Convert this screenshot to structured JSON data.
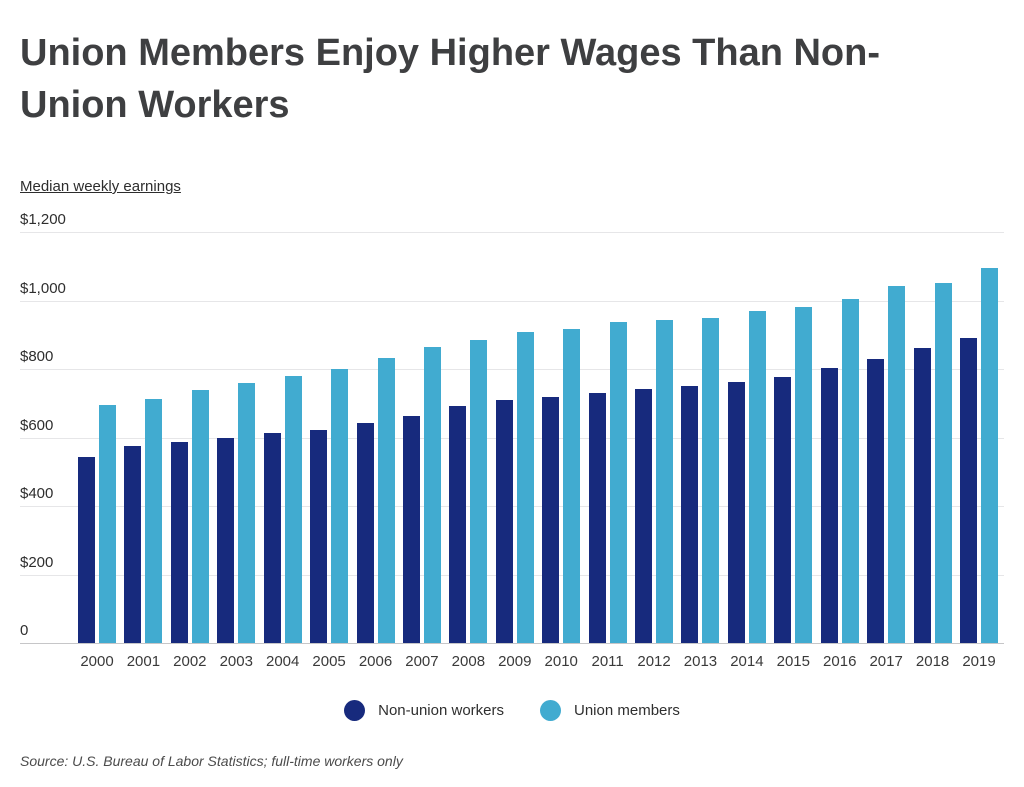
{
  "title": {
    "line1": "Union Members Enjoy Higher Wages Than Non-",
    "line2": "Union Workers"
  },
  "subtitle": "Median weekly earnings",
  "source": "Source: U.S. Bureau of Labor Statistics; full-time workers only",
  "colors": {
    "nonunion": "#172a7d",
    "union": "#41abd0",
    "gridline": "#e6e6e8",
    "baseline": "#c6c6c8",
    "title_text": "#3e3f41"
  },
  "chart_data": {
    "type": "bar",
    "title": "Union Members Enjoy Higher Wages Than Non-Union Workers",
    "subtitle": "Median weekly earnings",
    "xlabel": "",
    "ylabel": "Median weekly earnings ($)",
    "ylim": [
      0,
      1200
    ],
    "grid": true,
    "legend_position": "bottom",
    "categories": [
      "2000",
      "2001",
      "2002",
      "2003",
      "2004",
      "2005",
      "2006",
      "2007",
      "2008",
      "2009",
      "2010",
      "2011",
      "2012",
      "2013",
      "2014",
      "2015",
      "2016",
      "2017",
      "2018",
      "2019"
    ],
    "series": [
      {
        "name": "Non-union workers",
        "color": "#172a7d",
        "values": [
          542,
          575,
          587,
          599,
          612,
          622,
          642,
          663,
          691,
          710,
          717,
          729,
          742,
          750,
          763,
          776,
          802,
          829,
          860,
          892
        ]
      },
      {
        "name": "Union members",
        "color": "#41abd0",
        "values": [
          696,
          712,
          740,
          760,
          781,
          801,
          833,
          863,
          886,
          908,
          917,
          938,
          943,
          950,
          970,
          980,
          1004,
          1041,
          1051,
          1095
        ]
      }
    ],
    "yticks": [
      {
        "value": 1200,
        "label": "$1,200"
      },
      {
        "value": 1000,
        "label": "$1,000"
      },
      {
        "value": 800,
        "label": "$800"
      },
      {
        "value": 600,
        "label": "$600"
      },
      {
        "value": 400,
        "label": "$400"
      },
      {
        "value": 200,
        "label": "$200"
      },
      {
        "value": 0,
        "label": "0"
      }
    ]
  }
}
